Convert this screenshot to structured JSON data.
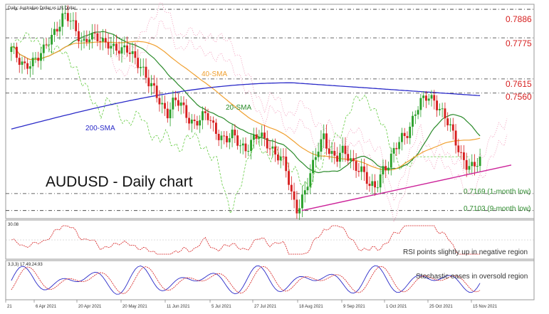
{
  "header": {
    "symbol_line": "Daily: Australian Dollar vs US Dollar"
  },
  "title": "AUDUSD - Daily chart",
  "price_levels": [
    {
      "label": "0.7886",
      "value": 0.7886,
      "color": "#d61f1f"
    },
    {
      "label": "0.7775",
      "value": 0.7775,
      "color": "#d61f1f"
    },
    {
      "label": "0.7615",
      "value": 0.7615,
      "color": "#d61f1f"
    },
    {
      "label": "0.7560",
      "value": 0.756,
      "color": "#d61f1f"
    },
    {
      "label": "0.7169 (1-month low)",
      "value": 0.7169,
      "color": "#2e8b2e"
    },
    {
      "label": "0.7103 (9-month low)",
      "value": 0.7103,
      "color": "#2e8b2e"
    }
  ],
  "ma_labels": {
    "sma200": "200-SMA",
    "sma40": "40-SMA",
    "sma20": "20-SMA"
  },
  "rsi_panel": {
    "header": "30.08",
    "annotation": "RSI points slightly up in negative region"
  },
  "stoch_panel": {
    "header": "3,3,3) 17.49,24.93",
    "annotation": "Stochastic eases in oversold region"
  },
  "x_axis_labels": [
    "21",
    "6 Apr 2021",
    "20 Apr 2021",
    "20 May 2021",
    "11 Jun 2021",
    "5 Jul 2021",
    "27 Jul 2021",
    "18 Aug 2021",
    "9 Sep 2021",
    "1 Oct 2021",
    "25 Oct 2021",
    "15 Nov 2021"
  ],
  "colors": {
    "up_candle": "#2aa02a",
    "down_candle": "#d61f1f",
    "sma20": "#2a8a2a",
    "sma40": "#f0a030",
    "sma200": "#2a2ac8",
    "trendline": "#cc2299",
    "rsi": "#d61f1f",
    "stoch_k": "#2a2ac8",
    "stoch_d": "#d61f1f",
    "level_line": "#333333"
  },
  "chart_data": {
    "type": "candlestick",
    "title": "AUDUSD - Daily chart",
    "period": "Daily",
    "y_range": [
      0.708,
      0.79
    ],
    "price_path": [
      0.774,
      0.768,
      0.766,
      0.769,
      0.77,
      0.772,
      0.777,
      0.782,
      0.787,
      0.784,
      0.779,
      0.776,
      0.779,
      0.777,
      0.775,
      0.776,
      0.774,
      0.772,
      0.772,
      0.77,
      0.767,
      0.76,
      0.756,
      0.752,
      0.749,
      0.753,
      0.751,
      0.747,
      0.745,
      0.746,
      0.747,
      0.743,
      0.74,
      0.738,
      0.739,
      0.736,
      0.735,
      0.738,
      0.739,
      0.737,
      0.735,
      0.732,
      0.728,
      0.716,
      0.711,
      0.718,
      0.724,
      0.733,
      0.74,
      0.733,
      0.73,
      0.733,
      0.731,
      0.728,
      0.725,
      0.719,
      0.72,
      0.727,
      0.728,
      0.734,
      0.739,
      0.742,
      0.748,
      0.752,
      0.755,
      0.754,
      0.749,
      0.744,
      0.739,
      0.733,
      0.728,
      0.726,
      0.73
    ],
    "moving_averages": [
      {
        "name": "200-SMA",
        "start": 0.742,
        "peak": 0.76,
        "end": 0.755
      },
      {
        "name": "40-SMA",
        "start": 0.772,
        "end": 0.737
      },
      {
        "name": "20-SMA",
        "start": 0.776,
        "end": 0.741
      }
    ],
    "support_trendline": {
      "from": 0.7103,
      "to": 0.728
    },
    "rsi_last": 30.08,
    "stochastic_last": {
      "k": 17.49,
      "d": 24.93
    }
  }
}
